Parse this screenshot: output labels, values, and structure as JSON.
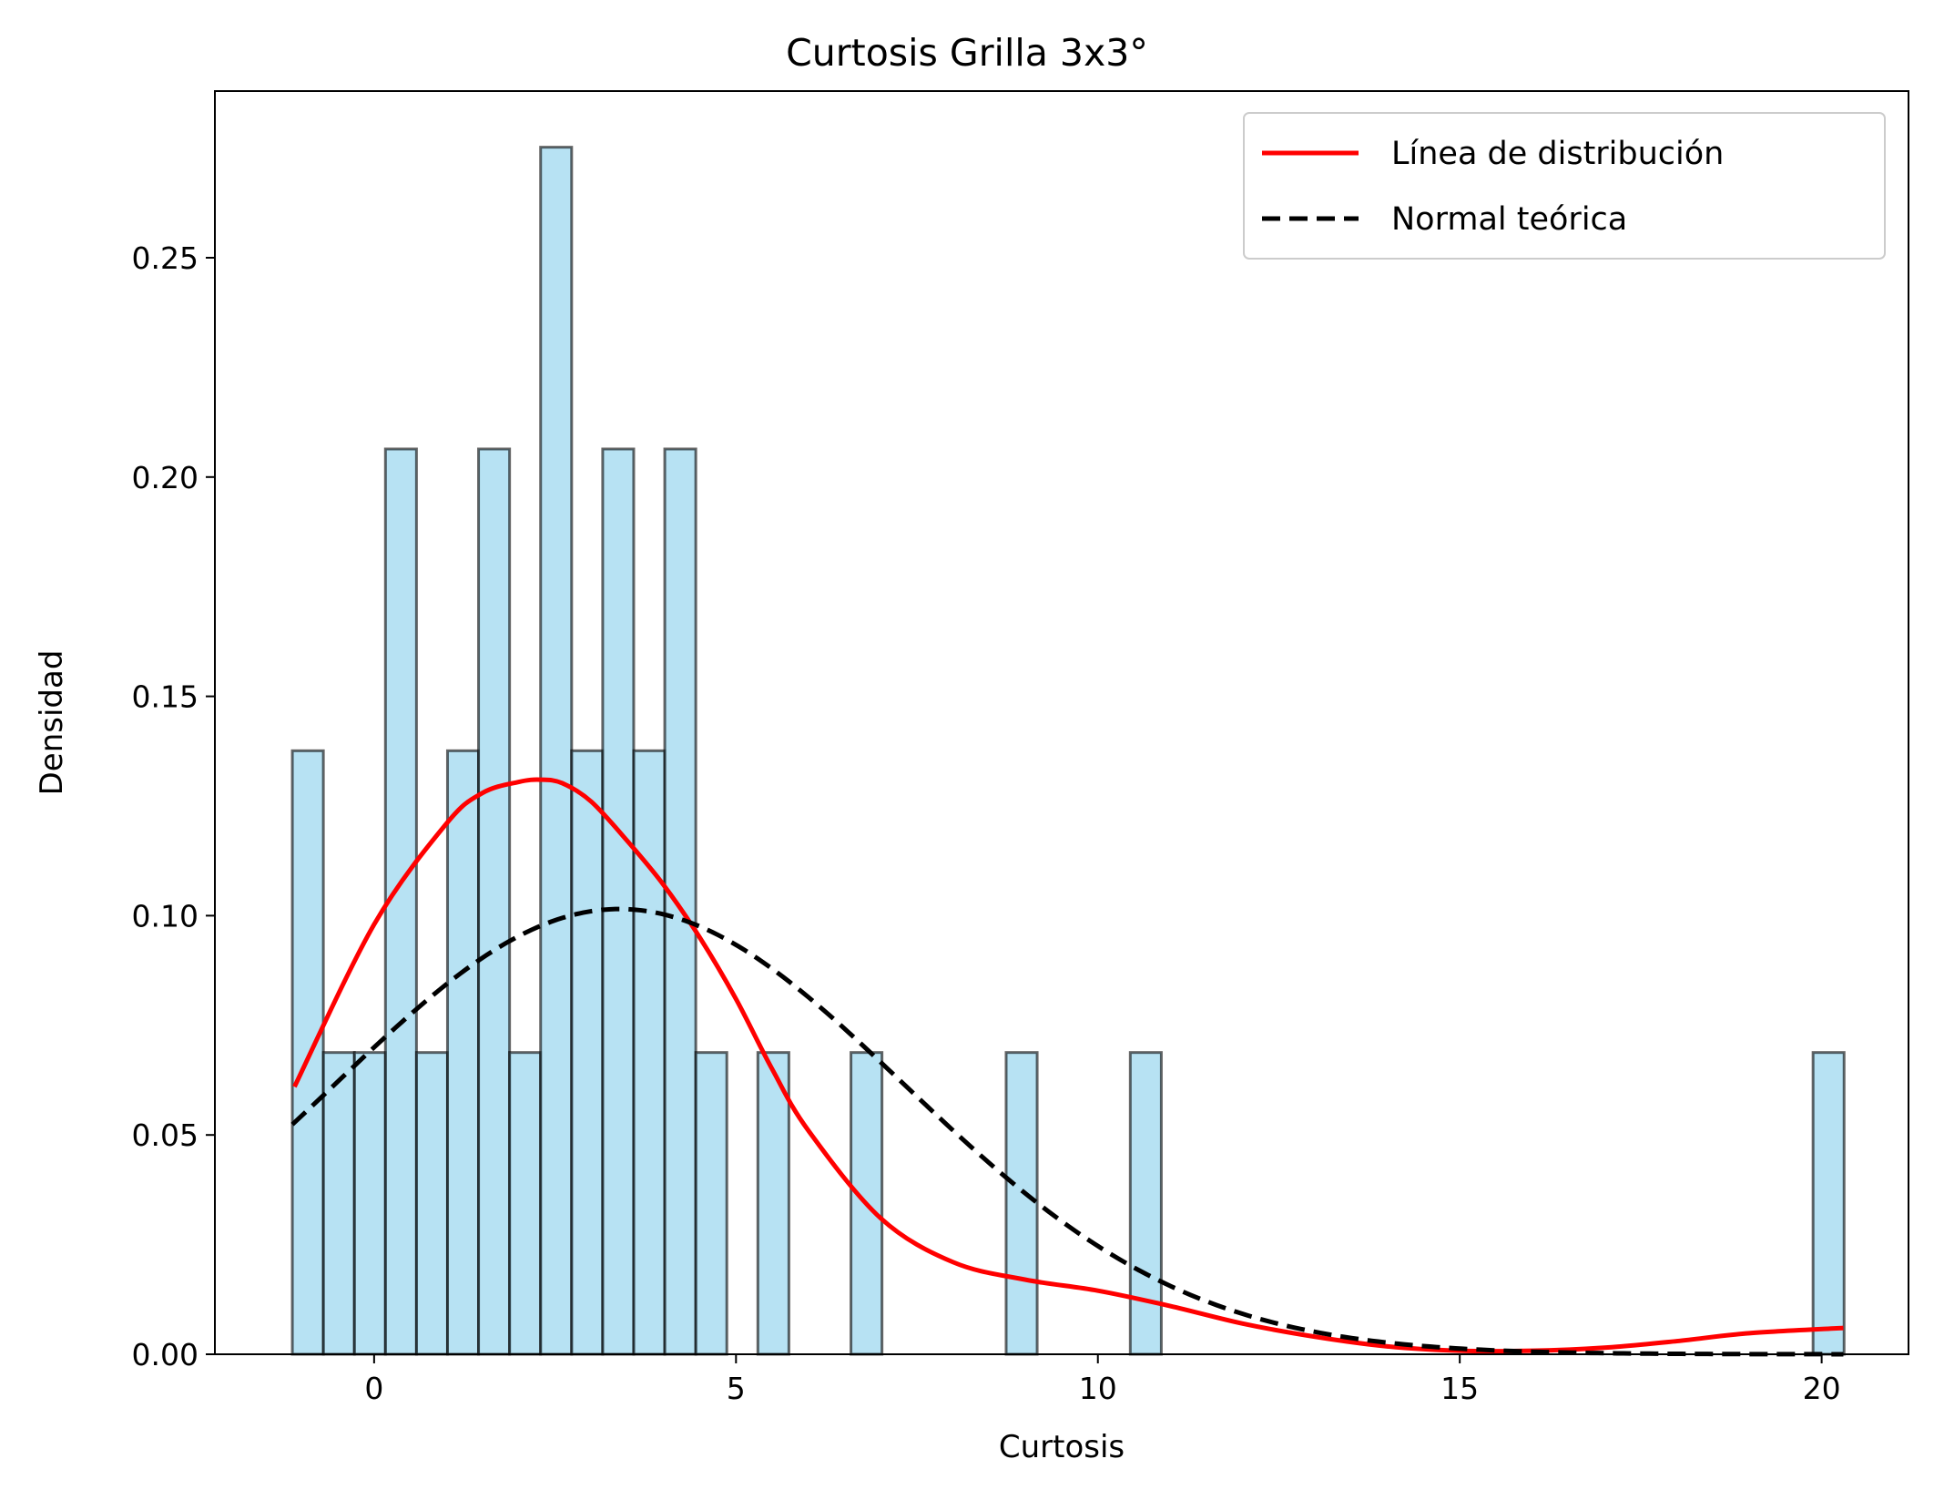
{
  "chart_data": {
    "type": "bar",
    "title": "Curtosis Grilla 3x3°",
    "xlabel": "Curtosis",
    "ylabel": "Densidad",
    "xlim": [
      -2.2,
      21.2
    ],
    "ylim": [
      0.0,
      0.288
    ],
    "xticks": [
      0,
      5,
      10,
      15,
      20
    ],
    "xtick_labels": [
      "0",
      "5",
      "10",
      "15",
      "20"
    ],
    "yticks": [
      0.0,
      0.05,
      0.1,
      0.15,
      0.2,
      0.25
    ],
    "ytick_labels": [
      "0.00",
      "0.05",
      "0.10",
      "0.15",
      "0.20",
      "0.25"
    ],
    "grid": false,
    "legend_position": "top-right",
    "colors": {
      "bar_fill": "#87ceeb",
      "bar_edge": "#000000",
      "distribution": "#ff0000",
      "normal": "#000000"
    },
    "histogram": {
      "bin_start": -1.13,
      "bin_width": 0.4288,
      "densities": [
        0.1376,
        0.0688,
        0.0688,
        0.2064,
        0.0688,
        0.1376,
        0.2064,
        0.0688,
        0.2752,
        0.1376,
        0.2064,
        0.1376,
        0.2064,
        0.0688,
        0.0,
        0.0688,
        0.0,
        0.0,
        0.0688,
        0.0,
        0.0,
        0.0,
        0.0,
        0.0688,
        0.0,
        0.0,
        0.0,
        0.0688,
        0.0,
        0.0,
        0.0,
        0.0,
        0.0,
        0.0,
        0.0,
        0.0,
        0.0,
        0.0,
        0.0,
        0.0,
        0.0,
        0.0,
        0.0,
        0.0,
        0.0,
        0.0,
        0.0,
        0.0,
        0.0,
        0.0688
      ]
    },
    "series": [
      {
        "name": "Línea de distribución",
        "style": "solid",
        "x": [
          -1.1,
          0.0,
          1.0,
          1.5,
          2.0,
          2.3,
          2.6,
          3.0,
          3.5,
          4.0,
          4.5,
          5.0,
          5.5,
          6.0,
          7.0,
          8.0,
          9.0,
          10.0,
          11.0,
          12.0,
          13.0,
          14.0,
          15.0,
          16.0,
          17.0,
          18.0,
          19.0,
          20.3
        ],
        "y": [
          0.061,
          0.098,
          0.121,
          0.128,
          0.1305,
          0.131,
          0.1302,
          0.126,
          0.117,
          0.107,
          0.095,
          0.081,
          0.065,
          0.051,
          0.031,
          0.021,
          0.017,
          0.0145,
          0.011,
          0.007,
          0.004,
          0.0018,
          0.0008,
          0.0008,
          0.0015,
          0.003,
          0.0048,
          0.006
        ]
      },
      {
        "name": "Normal teórica",
        "style": "dashed",
        "mean": 3.39,
        "sd": 3.93,
        "x_range": [
          -1.13,
          20.3
        ]
      }
    ]
  }
}
